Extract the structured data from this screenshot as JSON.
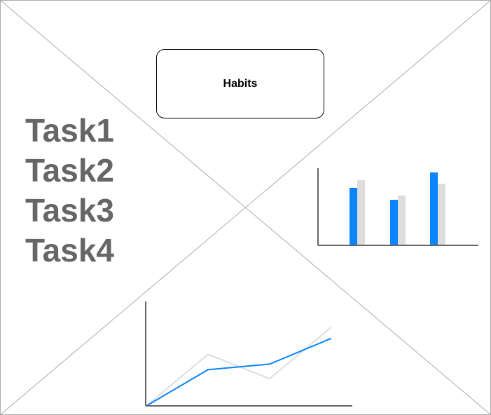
{
  "habits_button": {
    "label": "Habits"
  },
  "tasks": [
    "Task1",
    "Task2",
    "Task3",
    "Task4"
  ],
  "colors": {
    "frame": "#aaaaaa",
    "axis": "#666666",
    "primary_series": "#0a84ff",
    "secondary_series": "#dddddd",
    "task_text": "#666666"
  },
  "chart_data": [
    {
      "type": "bar",
      "categories": [
        "",
        "",
        ""
      ],
      "series": [
        {
          "values": [
            82,
            65,
            104
          ]
        },
        {
          "values": [
            93,
            71,
            88
          ]
        }
      ],
      "ylim": [
        0,
        110
      ],
      "grid": false
    },
    {
      "type": "line",
      "x": [
        0,
        1,
        2,
        3
      ],
      "series": [
        {
          "values": [
            0,
            52,
            60,
            97
          ]
        },
        {
          "values": [
            0,
            74,
            39,
            113
          ]
        }
      ],
      "ylim": [
        0,
        150
      ],
      "grid": false
    }
  ]
}
